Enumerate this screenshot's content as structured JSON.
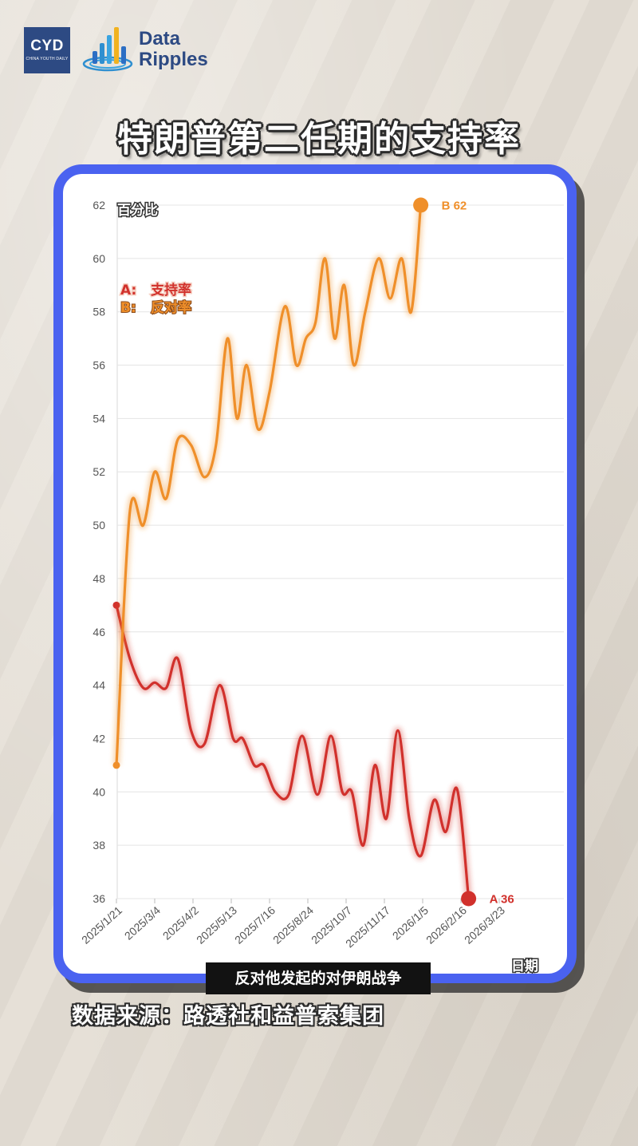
{
  "logos": {
    "cyd_text": "CYD",
    "cyd_subtext": "CHINA YOUTH DAILY",
    "brand_line1": "Data",
    "brand_line2": "Ripples"
  },
  "page_title": "特朗普第二任期的支持率",
  "chart_data": {
    "type": "line",
    "title": "特朗普第二任期的支持率",
    "ylabel": "百分比",
    "xlabel": "日期",
    "ylim": [
      36,
      62
    ],
    "yticks": [
      36,
      38,
      40,
      42,
      44,
      46,
      48,
      50,
      52,
      54,
      56,
      58,
      60,
      62
    ],
    "xticks": [
      "2025/1/21",
      "2025/3/4",
      "2025/4/2",
      "2025/5/13",
      "2025/7/16",
      "2025/8/24",
      "2025/10/7",
      "2025/11/17",
      "2026/1/5",
      "2026/2/16",
      "2026/3/23"
    ],
    "grid": true,
    "legend": [
      {
        "key": "A:",
        "label": "支持率",
        "color": "#d1312c"
      },
      {
        "key": "B:",
        "label": "反对率",
        "color": "#ef8f2a"
      }
    ],
    "series": [
      {
        "name": "A",
        "color": "#d1312c",
        "end_label": "A 36",
        "points": [
          [
            0,
            47
          ],
          [
            0.35,
            45
          ],
          [
            0.7,
            43.9
          ],
          [
            1.0,
            44.1
          ],
          [
            1.3,
            43.9
          ],
          [
            1.6,
            45
          ],
          [
            1.95,
            42.3
          ],
          [
            2.3,
            41.8
          ],
          [
            2.7,
            44
          ],
          [
            3.05,
            42
          ],
          [
            3.3,
            42
          ],
          [
            3.6,
            41
          ],
          [
            3.85,
            41
          ],
          [
            4.15,
            40
          ],
          [
            4.5,
            39.9
          ],
          [
            4.85,
            42.1
          ],
          [
            5.25,
            39.9
          ],
          [
            5.6,
            42.1
          ],
          [
            5.9,
            40
          ],
          [
            6.15,
            40
          ],
          [
            6.45,
            38
          ],
          [
            6.75,
            41
          ],
          [
            7.05,
            39
          ],
          [
            7.35,
            42.3
          ],
          [
            7.65,
            39
          ],
          [
            7.95,
            37.6
          ],
          [
            8.3,
            39.7
          ],
          [
            8.6,
            38.5
          ],
          [
            8.9,
            40.1
          ],
          [
            9.2,
            36
          ]
        ]
      },
      {
        "name": "B",
        "color": "#ef8f2a",
        "end_label": "B 62",
        "points": [
          [
            0,
            41
          ],
          [
            0.35,
            50.5
          ],
          [
            0.7,
            50
          ],
          [
            1.0,
            52
          ],
          [
            1.3,
            51
          ],
          [
            1.6,
            53.2
          ],
          [
            1.95,
            53
          ],
          [
            2.3,
            51.8
          ],
          [
            2.6,
            53
          ],
          [
            2.9,
            57
          ],
          [
            3.15,
            54
          ],
          [
            3.4,
            56
          ],
          [
            3.7,
            53.6
          ],
          [
            4.0,
            55
          ],
          [
            4.4,
            58.2
          ],
          [
            4.7,
            56
          ],
          [
            4.95,
            57
          ],
          [
            5.2,
            57.6
          ],
          [
            5.45,
            60
          ],
          [
            5.7,
            57
          ],
          [
            5.95,
            59
          ],
          [
            6.2,
            56
          ],
          [
            6.5,
            58
          ],
          [
            6.85,
            60
          ],
          [
            7.15,
            58.5
          ],
          [
            7.45,
            60
          ],
          [
            7.7,
            58
          ],
          [
            7.95,
            62
          ]
        ]
      }
    ]
  },
  "subtitle_band": "反对他发起的对伊朗战争",
  "source_note": "数据来源：路透社和益普索集团",
  "colors": {
    "frame": "#4a62f0",
    "approve": "#d1312c",
    "disapprove": "#ef8f2a",
    "brand_blue": "#2d4a83"
  }
}
